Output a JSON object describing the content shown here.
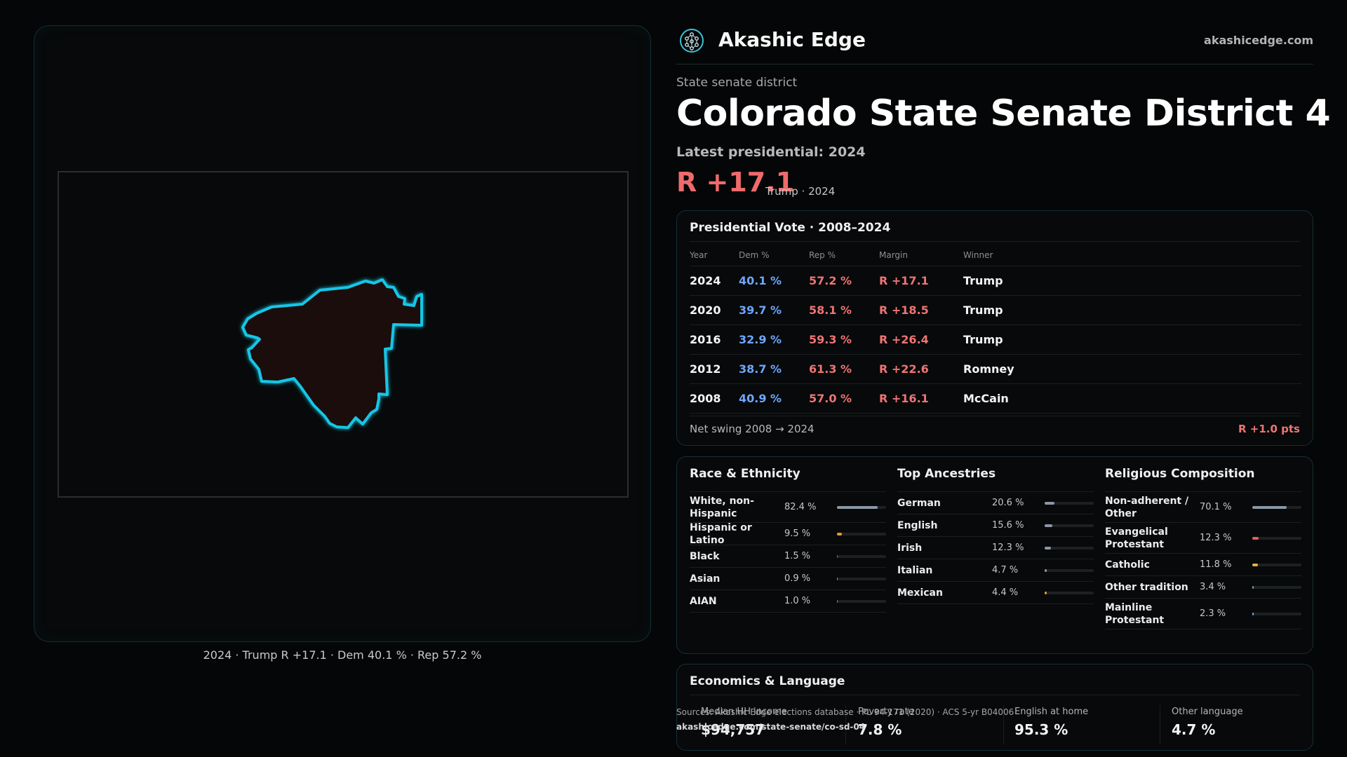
{
  "brand": {
    "name": "Akashic Edge",
    "site": "akashicedge.com",
    "logo_icon": "tree-of-life-icon",
    "accent": "#39c3d6"
  },
  "header": {
    "kicker": "State senate district",
    "title": "Colorado State Senate District 4",
    "latest": "Latest presidential: 2024",
    "margin": "R +17.1",
    "margin_sub": "Trump · 2024"
  },
  "map": {
    "caption": "2024 · Trump R +17.1 · Dem 40.1 % · Rep 57.2 %",
    "outline_color": "#19c6e6",
    "fill_color": "#1e0c0d"
  },
  "presidential": {
    "title": "Presidential Vote · 2008–2024",
    "columns": [
      "Year",
      "Dem %",
      "Rep %",
      "Margin",
      "Winner"
    ],
    "rows": [
      {
        "year": "2024",
        "dem": "40.1 %",
        "rep": "57.2 %",
        "margin": "R +17.1",
        "winner": "Trump"
      },
      {
        "year": "2020",
        "dem": "39.7 %",
        "rep": "58.1 %",
        "margin": "R +18.5",
        "winner": "Trump"
      },
      {
        "year": "2016",
        "dem": "32.9 %",
        "rep": "59.3 %",
        "margin": "R +26.4",
        "winner": "Trump"
      },
      {
        "year": "2012",
        "dem": "38.7 %",
        "rep": "61.3 %",
        "margin": "R +22.6",
        "winner": "Romney"
      },
      {
        "year": "2008",
        "dem": "40.9 %",
        "rep": "57.0 %",
        "margin": "R +16.1",
        "winner": "McCain"
      }
    ],
    "swing_label": "Net swing 2008 → 2024",
    "swing_value": "R +1.0 pts"
  },
  "race": {
    "title": "Race & Ethnicity",
    "rows": [
      {
        "label": "White, non-Hispanic",
        "value": "82.4 %",
        "pct": 82.4,
        "color": "#8b97a6"
      },
      {
        "label": "Hispanic or Latino",
        "value": "9.5 %",
        "pct": 9.5,
        "color": "#e09a3b"
      },
      {
        "label": "Black",
        "value": "1.5 %",
        "pct": 1.5,
        "color": "#5b6fd1"
      },
      {
        "label": "Asian",
        "value": "0.9 %",
        "pct": 0.9,
        "color": "#3fb28f"
      },
      {
        "label": "AIAN",
        "value": "1.0 %",
        "pct": 1.0,
        "color": "#c46a4a"
      }
    ]
  },
  "ancestry": {
    "title": "Top Ancestries",
    "rows": [
      {
        "label": "German",
        "value": "20.6 %",
        "pct": 20.6,
        "color": "#8b97a6"
      },
      {
        "label": "English",
        "value": "15.6 %",
        "pct": 15.6,
        "color": "#8b97a6"
      },
      {
        "label": "Irish",
        "value": "12.3 %",
        "pct": 12.3,
        "color": "#8b97a6"
      },
      {
        "label": "Italian",
        "value": "4.7 %",
        "pct": 4.7,
        "color": "#8b97a6"
      },
      {
        "label": "Mexican",
        "value": "4.4 %",
        "pct": 4.4,
        "color": "#e09a3b"
      }
    ]
  },
  "religion": {
    "title": "Religious Composition",
    "rows": [
      {
        "label": "Non-adherent / Other",
        "value": "70.1 %",
        "pct": 70.1,
        "color": "#8b97a6"
      },
      {
        "label": "Evangelical Protestant",
        "value": "12.3 %",
        "pct": 12.3,
        "color": "#e06060"
      },
      {
        "label": "Catholic",
        "value": "11.8 %",
        "pct": 11.8,
        "color": "#e0b43b"
      },
      {
        "label": "Other tradition",
        "value": "3.4 %",
        "pct": 3.4,
        "color": "#8b97a6"
      },
      {
        "label": "Mainline Protestant",
        "value": "2.3 %",
        "pct": 2.3,
        "color": "#6ea6ff"
      }
    ]
  },
  "economics": {
    "title": "Economics & Language",
    "stats": [
      {
        "label": "Median HH income",
        "value": "$94,757"
      },
      {
        "label": "Poverty rate",
        "value": "7.8 %"
      },
      {
        "label": "English at home",
        "value": "95.3 %"
      },
      {
        "label": "Other language",
        "value": "4.7 %"
      }
    ]
  },
  "source": {
    "line1": "Sources: Akashic Edge elections database · PL 94-171 (2020) · ACS 5-yr B04006",
    "line2": "akashicedge.com/state-senate/co-sd-04"
  }
}
